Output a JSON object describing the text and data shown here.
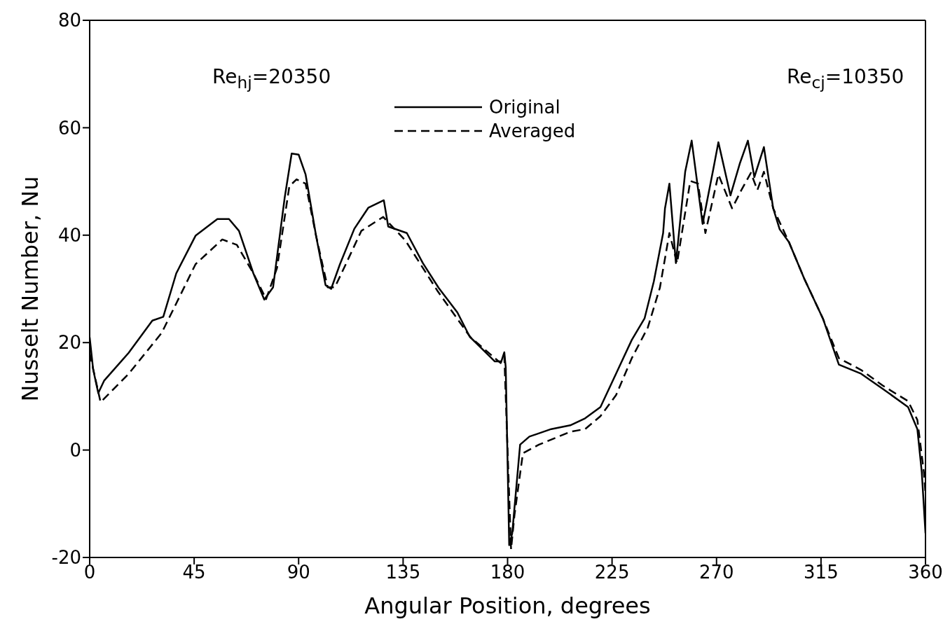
{
  "chart_data": {
    "type": "line",
    "xlabel": "Angular Position, degrees",
    "ylabel": "Nusselt Number, Nu",
    "annotations": [
      "Re$_{hj}$=20350",
      "Re$_{cj}$=10350"
    ],
    "xlim": [
      0,
      360
    ],
    "xticks": [
      0,
      45,
      90,
      135,
      180,
      225,
      270,
      315,
      360
    ],
    "ylim": [
      -20,
      80
    ],
    "yticks": [
      -20,
      0,
      20,
      40,
      60,
      80
    ],
    "legend": "top",
    "marker": "none",
    "series": [
      {
        "name": "Original",
        "color": "#000000",
        "line_style": "solid",
        "x": [
          0,
          1.5,
          3.7,
          6.2,
          16.8,
          27,
          31.7,
          37.3,
          45.6,
          55,
          60,
          64.3,
          70.5,
          75.2,
          79,
          84,
          87,
          90,
          93,
          97.5,
          101.6,
          104,
          107.8,
          114,
          120,
          126.7,
          128.6,
          136.6,
          143.5,
          150.3,
          158.4,
          163.7,
          174.5,
          177.3,
          178.6,
          179.2,
          180.7,
          182,
          185.4,
          189.4,
          198.8,
          207,
          213.4,
          220,
          226.7,
          233.5,
          239,
          243,
          247,
          247.8,
          249.7,
          252.5,
          256.5,
          259.3,
          264,
          268.7,
          270.8,
          276,
          280,
          283.5,
          286.3,
          290.4,
          294.4,
          297.2,
          301.2,
          307.8,
          315.8,
          322.7,
          332.3,
          341.6,
          352.5,
          356.5,
          358.4,
          360
        ],
        "values": [
          21,
          15,
          10.6,
          12.9,
          18.1,
          24.1,
          24.8,
          32.9,
          39.9,
          43,
          43,
          40.8,
          32.9,
          28,
          30.3,
          47,
          55.2,
          55,
          51.3,
          39.9,
          30.7,
          30,
          34.6,
          41.2,
          45.1,
          46.5,
          41.6,
          40.4,
          34.8,
          30.2,
          25.6,
          21.1,
          16.5,
          16.5,
          18.2,
          15.4,
          -17.7,
          -15.5,
          1,
          2.5,
          3.9,
          4.6,
          5.9,
          8,
          14.2,
          20.5,
          24.5,
          31.4,
          40.4,
          45,
          49.6,
          34.8,
          51.8,
          57.6,
          42.1,
          52.5,
          57.3,
          47.4,
          53.3,
          57.6,
          50.8,
          56.4,
          45,
          41.1,
          38.7,
          31.9,
          24.5,
          15.9,
          14.2,
          11.4,
          8,
          3.9,
          -4.1,
          -15.5
        ]
      },
      {
        "name": "Averaged",
        "color": "#000000",
        "line_style": "dashed",
        "x": [
          0,
          4.7,
          16.8,
          31,
          37.3,
          45.6,
          57.1,
          63.4,
          70.5,
          76,
          80.7,
          86,
          89.1,
          93,
          97.5,
          102.5,
          105.6,
          110,
          117,
          126.4,
          136,
          150,
          164,
          177,
          178.6,
          180,
          181.5,
          183,
          186.6,
          193.5,
          207,
          213.4,
          220,
          226.7,
          233.5,
          240.4,
          245.6,
          249.7,
          253,
          258.7,
          262,
          265.2,
          270.8,
          276.7,
          280.7,
          284.8,
          287.6,
          290.4,
          294.4,
          301.2,
          307.8,
          315.8,
          322.7,
          332.3,
          341.6,
          352.5,
          356.5,
          359.3,
          360
        ],
        "values": [
          18,
          8.9,
          14.2,
          21.8,
          27.3,
          34.6,
          39.2,
          38.2,
          32.9,
          28.1,
          33.9,
          49.1,
          50.4,
          49.6,
          39.9,
          30.3,
          30.3,
          34.3,
          40.8,
          43.4,
          39,
          29.5,
          21,
          16.2,
          17.5,
          0,
          -18.5,
          -12,
          -0.6,
          1,
          3.4,
          3.9,
          6.3,
          10.2,
          17.1,
          22.8,
          30.2,
          40.4,
          34.8,
          50.1,
          49.6,
          40.4,
          51.3,
          45,
          48.4,
          51.6,
          48.4,
          51.8,
          45,
          38.7,
          31.9,
          24.5,
          17.1,
          14.9,
          12,
          9.1,
          5.6,
          -4.1,
          -8
        ]
      }
    ]
  }
}
